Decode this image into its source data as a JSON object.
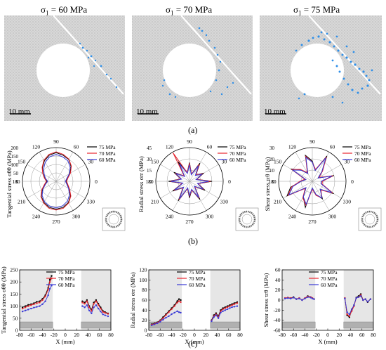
{
  "panel_a": {
    "label": "(a)",
    "images": [
      {
        "title": "σ1 = 60 MPa",
        "sigma": "σ",
        "sub": "1",
        "rest": " = 60 MPa",
        "scale": "10 mm"
      },
      {
        "title": "σ1 = 70 MPa",
        "sigma": "σ",
        "sub": "1",
        "rest": " = 70 MPa",
        "scale": "10 mm"
      },
      {
        "title": "σ1 = 75 MPa",
        "sigma": "σ",
        "sub": "1",
        "rest": " = 75 MPa",
        "scale": "10 mm"
      }
    ]
  },
  "panel_b_label": "(b)",
  "panel_c_label": "(c)",
  "colors": {
    "75 MPa": "#000000",
    "70 MPa": "#e8242e",
    "60 MPa": "#3a3ad6",
    "fracture": "#2f8fe8"
  },
  "chart_data": [
    {
      "id": "b1",
      "type": "polar",
      "ylabel": "Tangential stress σθθ (MPa)",
      "r_ticks": [
        "0",
        "50",
        "100",
        "150",
        "200"
      ],
      "angle_labels": [
        "0",
        "30",
        "60",
        "90",
        "120",
        "150",
        "180",
        "210",
        "240",
        "270",
        "300",
        "330"
      ],
      "rmax": 200,
      "legend": [
        "75 MPa",
        "70 MPa",
        "60 MPa"
      ],
      "series": [
        {
          "name": "75 MPa",
          "r": [
            60,
            70,
            95,
            125,
            150,
            160,
            170,
            160,
            140,
            115,
            90,
            70,
            55,
            70,
            95,
            125,
            145,
            160,
            165,
            160,
            145,
            120,
            90,
            70
          ]
        },
        {
          "name": "70 MPa",
          "r": [
            62,
            72,
            98,
            128,
            152,
            165,
            175,
            165,
            145,
            118,
            92,
            72,
            58,
            72,
            98,
            128,
            148,
            165,
            170,
            165,
            148,
            124,
            92,
            72
          ]
        },
        {
          "name": "60 MPa",
          "r": [
            55,
            65,
            90,
            118,
            140,
            150,
            160,
            150,
            130,
            105,
            82,
            65,
            50,
            65,
            90,
            118,
            138,
            152,
            158,
            150,
            135,
            112,
            85,
            65
          ]
        }
      ]
    },
    {
      "id": "b2",
      "type": "polar",
      "ylabel": "Radial stress σrr (MPa)",
      "r_ticks": [
        "0",
        "15",
        "30",
        "45"
      ],
      "angle_labels": [
        "0",
        "30",
        "60",
        "90",
        "120",
        "150",
        "180",
        "210",
        "240",
        "270",
        "300",
        "330"
      ],
      "rmax": 45,
      "legend": [
        "75 MPa",
        "70 MPa",
        "60 MPa"
      ],
      "series": [
        {
          "name": "75 MPa",
          "r": [
            30,
            10,
            22,
            12,
            28,
            10,
            25,
            12,
            30,
            10,
            24,
            12,
            28,
            10,
            26,
            12,
            30,
            10,
            22,
            12,
            28,
            10,
            24,
            12
          ]
        },
        {
          "name": "70 MPa",
          "r": [
            28,
            10,
            20,
            12,
            26,
            10,
            24,
            12,
            44,
            10,
            22,
            12,
            26,
            10,
            24,
            12,
            28,
            10,
            20,
            12,
            26,
            10,
            22,
            12
          ]
        },
        {
          "name": "60 MPa",
          "r": [
            26,
            9,
            19,
            11,
            24,
            9,
            22,
            11,
            27,
            9,
            21,
            11,
            25,
            9,
            23,
            11,
            27,
            9,
            19,
            11,
            25,
            9,
            21,
            11
          ]
        }
      ]
    },
    {
      "id": "b3",
      "type": "polar",
      "ylabel": "Shear stress τrθ (MPa)",
      "r_ticks": [
        "0",
        "10",
        "20",
        "30"
      ],
      "angle_labels": [
        "0",
        "30",
        "60",
        "90",
        "120",
        "150",
        "180",
        "210",
        "240",
        "270",
        "300",
        "330"
      ],
      "rmax": 30,
      "legend": [
        "75 MPa",
        "70 MPa",
        "60 MPa"
      ],
      "series": [
        {
          "name": "75 MPa",
          "r": [
            8,
            20,
            6,
            12,
            26,
            10,
            18,
            24,
            8,
            14,
            22,
            6,
            10,
            20,
            26,
            8,
            16,
            24,
            6,
            12,
            18,
            10,
            22,
            8
          ]
        },
        {
          "name": "70 MPa",
          "r": [
            9,
            19,
            7,
            13,
            25,
            11,
            17,
            23,
            9,
            15,
            21,
            7,
            11,
            19,
            25,
            9,
            17,
            22,
            7,
            13,
            17,
            11,
            21,
            9
          ]
        },
        {
          "name": "60 MPa",
          "r": [
            8,
            18,
            6,
            12,
            24,
            10,
            17,
            22,
            8,
            14,
            20,
            6,
            10,
            18,
            24,
            8,
            16,
            21,
            6,
            12,
            17,
            10,
            20,
            8
          ]
        }
      ]
    },
    {
      "id": "c1",
      "type": "line",
      "ylabel": "Tangential stress σθθ (MPa)",
      "xlabel": "X (mm)",
      "xlim": [
        -80,
        80
      ],
      "ylim": [
        0,
        250
      ],
      "xticks": [
        -80,
        -60,
        -40,
        -20,
        0,
        20,
        40,
        60,
        80
      ],
      "yticks": [
        0,
        50,
        100,
        150,
        200,
        250
      ],
      "legend": [
        "75 MPa",
        "70 MPa",
        "60 MPa"
      ],
      "series": [
        {
          "name": "75 MPa",
          "x": [
            -75,
            -70,
            -65,
            -60,
            -55,
            -50,
            -45,
            -40,
            -35,
            -30,
            -27,
            -24,
            30,
            34,
            38,
            42,
            46,
            50,
            54,
            58,
            62,
            66,
            70,
            75
          ],
          "y": [
            95,
            100,
            105,
            108,
            112,
            118,
            120,
            130,
            145,
            175,
            210,
            225,
            120,
            115,
            125,
            100,
            85,
            115,
            125,
            110,
            95,
            80,
            75,
            70
          ]
        },
        {
          "name": "70 MPa",
          "x": [
            -75,
            -70,
            -65,
            -60,
            -55,
            -50,
            -45,
            -40,
            -35,
            -30,
            -27,
            -24,
            30,
            34,
            38,
            42,
            46,
            50,
            54,
            58,
            62,
            66,
            70,
            75
          ],
          "y": [
            90,
            95,
            100,
            104,
            108,
            112,
            115,
            125,
            140,
            168,
            200,
            215,
            115,
            110,
            120,
            95,
            80,
            110,
            120,
            105,
            90,
            76,
            72,
            68
          ]
        },
        {
          "name": "60 MPa",
          "x": [
            -75,
            -70,
            -65,
            -60,
            -55,
            -50,
            -45,
            -40,
            -35,
            -30,
            -27,
            -24,
            30,
            34,
            38,
            42,
            46,
            50,
            54,
            58,
            62,
            66,
            70,
            75
          ],
          "y": [
            78,
            82,
            86,
            90,
            94,
            97,
            100,
            108,
            120,
            145,
            172,
            185,
            100,
            95,
            104,
            82,
            70,
            95,
            104,
            90,
            78,
            66,
            62,
            58
          ]
        }
      ]
    },
    {
      "id": "c2",
      "type": "line",
      "ylabel": "Radial stress σrr (MPa)",
      "xlabel": "X (mm)",
      "xlim": [
        -80,
        80
      ],
      "ylim": [
        0,
        120
      ],
      "xticks": [
        -80,
        -60,
        -40,
        -20,
        0,
        20,
        40,
        60,
        80
      ],
      "yticks": [
        0,
        20,
        40,
        60,
        80,
        100,
        120
      ],
      "legend": [
        "75 MPa",
        "70 MPa",
        "60 MPa"
      ],
      "series": [
        {
          "name": "75 MPa",
          "x": [
            -75,
            -70,
            -65,
            -60,
            -55,
            -50,
            -45,
            -40,
            -35,
            -30,
            -27,
            -24,
            30,
            34,
            38,
            42,
            46,
            50,
            54,
            58,
            62,
            66,
            70,
            75
          ],
          "y": [
            12,
            14,
            16,
            20,
            26,
            32,
            38,
            44,
            50,
            58,
            62,
            60,
            20,
            30,
            34,
            28,
            40,
            44,
            46,
            48,
            50,
            52,
            54,
            56
          ]
        },
        {
          "name": "70 MPa",
          "x": [
            -75,
            -70,
            -65,
            -60,
            -55,
            -50,
            -45,
            -40,
            -35,
            -30,
            -27,
            -24,
            30,
            34,
            38,
            42,
            46,
            50,
            54,
            58,
            62,
            66,
            70,
            75
          ],
          "y": [
            11,
            13,
            15,
            19,
            24,
            30,
            36,
            42,
            48,
            55,
            58,
            56,
            19,
            28,
            32,
            26,
            38,
            42,
            44,
            46,
            48,
            50,
            52,
            54
          ]
        },
        {
          "name": "60 MPa",
          "x": [
            -75,
            -70,
            -65,
            -60,
            -55,
            -50,
            -45,
            -40,
            -35,
            -30,
            -27,
            -24,
            30,
            34,
            38,
            42,
            46,
            50,
            54,
            58,
            62,
            66,
            70,
            75
          ],
          "y": [
            10,
            12,
            14,
            17,
            21,
            25,
            28,
            32,
            35,
            38,
            36,
            35,
            18,
            26,
            30,
            24,
            35,
            38,
            40,
            42,
            44,
            46,
            47,
            48
          ]
        }
      ]
    },
    {
      "id": "c3",
      "type": "line",
      "ylabel": "Shear stress τrθ (MPa)",
      "xlabel": "X (mm)",
      "xlim": [
        -80,
        80
      ],
      "ylim": [
        -60,
        60
      ],
      "xticks": [
        -80,
        -60,
        -40,
        -20,
        0,
        20,
        40,
        60,
        80
      ],
      "yticks": [
        -60,
        -40,
        -20,
        0,
        20,
        40,
        60
      ],
      "legend": [
        "75 MPa",
        "70 MPa",
        "60 MPa"
      ],
      "series": [
        {
          "name": "75 MPa",
          "x": [
            -75,
            -70,
            -65,
            -60,
            -55,
            -50,
            -45,
            -40,
            -35,
            -30,
            -27,
            -24,
            30,
            34,
            38,
            42,
            46,
            50,
            54,
            58,
            62,
            66,
            70,
            75
          ],
          "y": [
            4,
            5,
            4,
            6,
            2,
            4,
            0,
            4,
            8,
            6,
            4,
            2,
            4,
            -30,
            -34,
            -20,
            -10,
            5,
            8,
            12,
            0,
            2,
            -4,
            2
          ]
        },
        {
          "name": "70 MPa",
          "x": [
            -75,
            -70,
            -65,
            -60,
            -55,
            -50,
            -45,
            -40,
            -35,
            -30,
            -27,
            -24,
            30,
            34,
            38,
            42,
            46,
            50,
            54,
            58,
            62,
            66,
            70,
            75
          ],
          "y": [
            4,
            5,
            4,
            5,
            2,
            4,
            0,
            4,
            7,
            6,
            4,
            2,
            4,
            -28,
            -32,
            -22,
            -12,
            4,
            6,
            10,
            0,
            2,
            -3,
            2
          ]
        },
        {
          "name": "60 MPa",
          "x": [
            -75,
            -70,
            -65,
            -60,
            -55,
            -50,
            -45,
            -40,
            -35,
            -30,
            -27,
            -24,
            30,
            34,
            38,
            42,
            46,
            50,
            54,
            58,
            62,
            66,
            70,
            75
          ],
          "y": [
            3,
            4,
            3,
            5,
            2,
            3,
            0,
            3,
            6,
            5,
            3,
            2,
            3,
            -24,
            -28,
            -18,
            -10,
            4,
            6,
            8,
            0,
            2,
            -3,
            2
          ]
        }
      ]
    }
  ]
}
